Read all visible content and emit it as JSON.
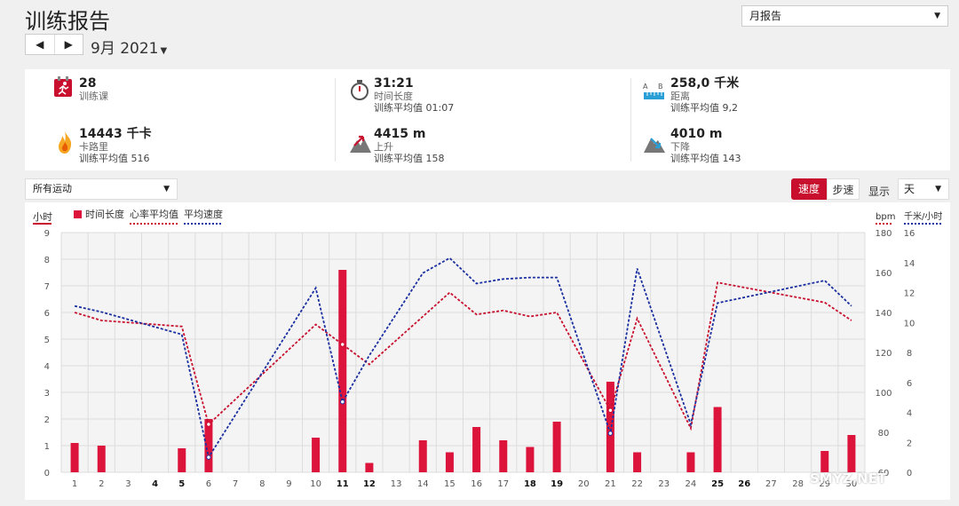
{
  "header": {
    "title": "训练报告",
    "report_type": "月报告",
    "period": "9月 2021"
  },
  "stats": [
    {
      "value": "28",
      "label": "训练课",
      "avg": "",
      "icon": "calendar-run-icon"
    },
    {
      "value": "31:21",
      "label": "时间长度",
      "avg": "训练平均值 01:07",
      "icon": "stopwatch-icon"
    },
    {
      "value": "258,0 千米",
      "label": "距离",
      "avg": "训练平均值 9,2",
      "icon": "distance-ruler-icon"
    },
    {
      "value": "14443 千卡",
      "label": "卡路里",
      "avg": "训练平均值 516",
      "icon": "flame-icon"
    },
    {
      "value": "4415 m",
      "label": "上升",
      "avg": "训练平均值 158",
      "icon": "ascent-icon"
    },
    {
      "value": "4010 m",
      "label": "下降",
      "avg": "训练平均值 143",
      "icon": "descent-icon"
    }
  ],
  "controls": {
    "sport": "所有运动",
    "speed_btn": "速度",
    "pace_btn": "步速",
    "show_label": "显示",
    "granularity": "天"
  },
  "legend": {
    "left_unit": "小时",
    "bar": "时间长度",
    "hr": "心率平均值",
    "speed": "平均速度",
    "bpm": "bpm",
    "kmh": "千米/小时"
  },
  "colors": {
    "bar": "#dc143c",
    "hr": "#c8102e",
    "speed": "#1a2fa0",
    "accent": "#c8102e"
  },
  "watermark": "SMYZ.NET",
  "chart_data": {
    "type": "bar",
    "x": [
      1,
      2,
      3,
      4,
      5,
      6,
      7,
      8,
      9,
      10,
      11,
      12,
      13,
      14,
      15,
      16,
      17,
      18,
      19,
      20,
      21,
      22,
      23,
      24,
      25,
      26,
      27,
      28,
      29,
      30
    ],
    "bold_days": [
      4,
      5,
      11,
      12,
      18,
      19,
      25,
      26
    ],
    "series": [
      {
        "name": "时间长度",
        "axis": "hours",
        "type": "bar",
        "values": [
          1.1,
          1.0,
          null,
          null,
          0.9,
          2.0,
          null,
          null,
          null,
          1.3,
          7.6,
          0.35,
          null,
          1.2,
          0.75,
          1.7,
          1.2,
          0.95,
          1.9,
          null,
          3.4,
          0.75,
          null,
          0.75,
          2.45,
          null,
          null,
          null,
          0.8,
          1.4
        ]
      },
      {
        "name": "心率平均值",
        "axis": "bpm",
        "type": "line",
        "values": [
          140,
          136,
          null,
          null,
          133,
          84,
          null,
          null,
          null,
          134,
          124,
          114,
          null,
          138,
          150,
          139,
          141,
          138,
          140,
          null,
          91,
          137,
          null,
          82,
          155,
          null,
          null,
          null,
          145,
          136
        ]
      },
      {
        "name": "平均速度",
        "axis": "kmh",
        "type": "line",
        "values": [
          11.1,
          10.7,
          null,
          null,
          9.2,
          1.0,
          null,
          null,
          null,
          12.3,
          4.7,
          7.8,
          null,
          13.3,
          14.3,
          12.6,
          12.9,
          13.0,
          13.0,
          null,
          2.6,
          13.6,
          null,
          3.2,
          11.3,
          null,
          null,
          null,
          12.8,
          11.1
        ]
      }
    ],
    "y_hours": {
      "range": [
        0,
        9
      ],
      "ticks": [
        0,
        1,
        2,
        3,
        4,
        5,
        6,
        7,
        8,
        9
      ]
    },
    "y_bpm": {
      "range": [
        60,
        180
      ],
      "ticks": [
        60,
        80,
        100,
        120,
        140,
        160,
        180
      ]
    },
    "y_kmh": {
      "range": [
        0,
        16
      ],
      "ticks": [
        0,
        2,
        4,
        6,
        8,
        10,
        12,
        14,
        16
      ]
    },
    "grid": true
  }
}
